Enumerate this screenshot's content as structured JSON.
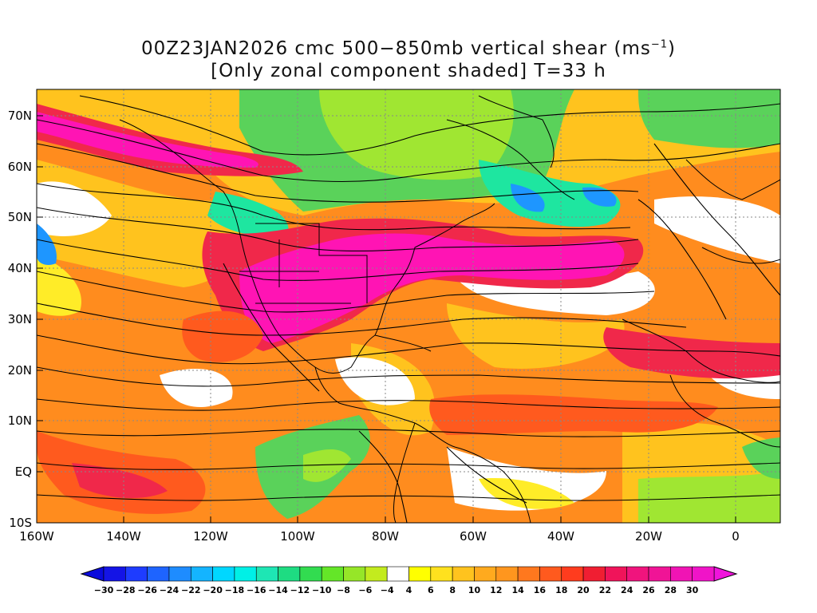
{
  "title": {
    "line1": "00Z23JAN2026 cmc 500−850mb vertical shear (ms",
    "line1_sup": "−1",
    "line1_end": ")",
    "line2": "[Only zonal component shaded] T=33 h"
  },
  "map": {
    "lon_range": [
      -160,
      10
    ],
    "lat_range": [
      -10,
      75
    ],
    "lat_ticks": [
      {
        "value": 70,
        "label": "70N"
      },
      {
        "value": 60,
        "label": "60N"
      },
      {
        "value": 50,
        "label": "50N"
      },
      {
        "value": 40,
        "label": "40N"
      },
      {
        "value": 30,
        "label": "30N"
      },
      {
        "value": 20,
        "label": "20N"
      },
      {
        "value": 10,
        "label": "10N"
      },
      {
        "value": 0,
        "label": "EQ"
      },
      {
        "value": -10,
        "label": "10S"
      }
    ],
    "lon_ticks": [
      {
        "value": -160,
        "label": "160W"
      },
      {
        "value": -140,
        "label": "140W"
      },
      {
        "value": -120,
        "label": "120W"
      },
      {
        "value": -100,
        "label": "100W"
      },
      {
        "value": -80,
        "label": "80W"
      },
      {
        "value": -60,
        "label": "60W"
      },
      {
        "value": -40,
        "label": "40W"
      },
      {
        "value": -20,
        "label": "20W"
      },
      {
        "value": 0,
        "label": "0"
      }
    ],
    "colors": {
      "magenta": "#ff14b4",
      "red": "#f0284a",
      "orange_red": "#ff5a1e",
      "orange": "#ff8c1e",
      "yellow_orange": "#ffc31e",
      "yellow": "#ffec28",
      "green": "#5ad25a",
      "light_green": "#a0e632",
      "teal": "#1ee6a0",
      "blue": "#1e96ff"
    }
  },
  "colorbar": {
    "labels": [
      "-30",
      "-28",
      "-26",
      "-24",
      "-22",
      "-20",
      "-18",
      "-16",
      "-14",
      "-12",
      "-10",
      "-8",
      "-6",
      "-4",
      "4",
      "6",
      "8",
      "10",
      "12",
      "14",
      "16",
      "18",
      "20",
      "22",
      "24",
      "26",
      "28",
      "30"
    ],
    "colors": [
      "#1414e6",
      "#1e3cff",
      "#1e64ff",
      "#1e8cff",
      "#14b4ff",
      "#00d7ff",
      "#00f0e6",
      "#1ee6b4",
      "#1edc82",
      "#32dc50",
      "#64e628",
      "#96e628",
      "#c3eb1e",
      "#ffffff",
      "#ffff00",
      "#ffe11e",
      "#ffc31e",
      "#ffaa1e",
      "#ff961e",
      "#ff781e",
      "#ff5a1e",
      "#ff3c1e",
      "#f01e32",
      "#f0145a",
      "#f0147d",
      "#f01496",
      "#f014b4",
      "#f014c8"
    ]
  }
}
